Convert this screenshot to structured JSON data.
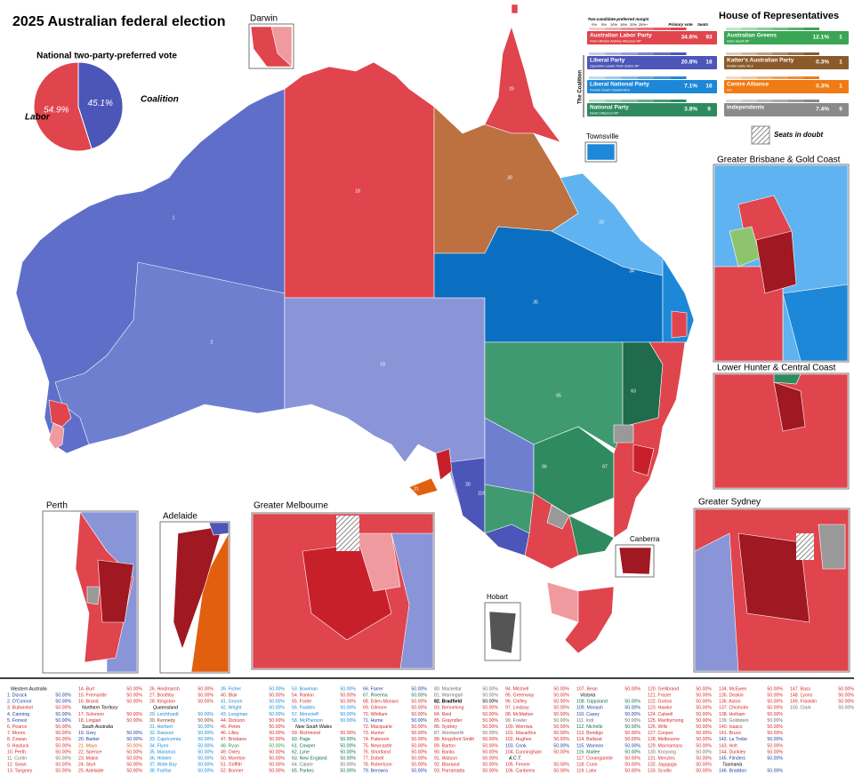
{
  "title": "2025 Australian federal election",
  "pie": {
    "title": "National two-party-preferred vote",
    "series": [
      {
        "name": "Labor",
        "value": 54.9,
        "label": "54.9%",
        "color": "#e0444d"
      },
      {
        "name": "Coalition",
        "value": 45.1,
        "label": "45.1%",
        "color": "#4b56b8"
      }
    ]
  },
  "legend": {
    "margin_title": "Two-candidate-preferred margin",
    "margin_ticks": [
      "0%",
      "5%",
      "10%",
      "15%",
      "20%",
      "25%+"
    ],
    "primary_header": "Primary vote",
    "seats_header": "Seats",
    "coalition_label": "The Coalition",
    "parties": [
      {
        "name": "Australian Labor Party",
        "leader": "Prime Minister Anthony Albanese MP",
        "primary": "34.6%",
        "seats": 93,
        "color": "#e0444d"
      },
      {
        "name": "Liberal Party",
        "leader": "Opposition Leader Peter Dutton MP",
        "primary": "20.8%",
        "seats": 18,
        "color": "#4b56b8"
      },
      {
        "name": "Liberal National Party",
        "leader": "Premier David Crisafulli MLA",
        "primary": "7.1%",
        "seats": 16,
        "color": "#1e88d8"
      },
      {
        "name": "National Party",
        "leader": "David Littleproud MP",
        "primary": "3.8%",
        "seats": 9,
        "color": "#2f8a60"
      }
    ]
  },
  "house": {
    "title": "House of Representatives",
    "parties": [
      {
        "name": "Australian Greens",
        "leader": "Adam Bandt MP",
        "primary": "12.1%",
        "seats": 1,
        "color": "#3aa655"
      },
      {
        "name": "Katter's Australian Party",
        "leader": "Robbie Katter MLA",
        "primary": "0.3%",
        "seats": 1,
        "color": "#8b5a2b"
      },
      {
        "name": "Centre Alliance",
        "leader": "N/A",
        "primary": "0.3%",
        "seats": 1,
        "color": "#f07a14"
      },
      {
        "name": "Independents",
        "primary": "7.4%",
        "seats": 9,
        "color": "#8a8a8a"
      }
    ]
  },
  "doubt_label": "Seats in doubt",
  "insets": [
    "Darwin",
    "Townsville",
    "Greater Brisbane & Gold Coast",
    "Lower Hunter & Central Coast",
    "Perth",
    "Adelaide",
    "Greater Melbourne",
    "Hobart",
    "Canberra",
    "Greater Sydney"
  ],
  "map_labels": [
    "1",
    "2",
    "18",
    "19",
    "29",
    "30",
    "33",
    "34",
    "35",
    "65",
    "20",
    "21",
    "116",
    "66",
    "63",
    "67"
  ],
  "electorates": [
    [
      "Western Australia"
    ],
    [
      "1. Durack",
      "50.00%",
      "#1b3fa0"
    ],
    [
      "2. O'Connor",
      "50.00%",
      "#1b3fa0"
    ],
    [
      "3. Bullwinkel",
      "50.00%",
      "#d42a2a"
    ],
    [
      "4. Canning",
      "50.00%",
      "#1b3fa0"
    ],
    [
      "5. Forrest",
      "50.00%",
      "#1b3fa0"
    ],
    [
      "6. Pearce",
      "50.00%",
      "#d42a2a"
    ],
    [
      "7. Moore",
      "50.00%",
      "#d42a2a"
    ],
    [
      "8. Cowan",
      "50.00%",
      "#d42a2a"
    ],
    [
      "9. Hasluck",
      "50.00%",
      "#d42a2a"
    ],
    [
      "10. Perth",
      "50.00%",
      "#d42a2a"
    ],
    [
      "11. Curtin",
      "50.00%",
      "#6d6d6d"
    ],
    [
      "12. Swan",
      "50.00%",
      "#d42a2a"
    ],
    [
      "13. Tangney",
      "50.00%",
      "#d42a2a"
    ],
    [
      "14. Burt",
      "50.00%",
      "#d42a2a"
    ],
    [
      "15. Fremantle",
      "50.00%",
      "#d42a2a"
    ],
    [
      "16. Brand",
      "50.00%",
      "#d42a2a"
    ],
    [
      "Northern Territory"
    ],
    [
      "17. Solomon",
      "50.00%",
      "#d42a2a"
    ],
    [
      "18. Lingiari",
      "50.00%",
      "#d42a2a"
    ],
    [
      "South Australia"
    ],
    [
      "19. Grey",
      "50.00%",
      "#1b3fa0"
    ],
    [
      "20. Barker",
      "50.00%",
      "#1b3fa0"
    ],
    [
      "21. Mayo",
      "50.00%",
      "#e0600a"
    ],
    [
      "22. Spence",
      "50.00%",
      "#d42a2a"
    ],
    [
      "23. Makin",
      "50.00%",
      "#d42a2a"
    ],
    [
      "24. Sturt",
      "50.00%",
      "#d42a2a"
    ],
    [
      "25. Adelaide",
      "50.00%",
      "#d42a2a"
    ],
    [
      "26. Hindmarsh",
      "50.00%",
      "#d42a2a"
    ],
    [
      "27. Boothby",
      "50.00%",
      "#d42a2a"
    ],
    [
      "28. Kingston",
      "50.00%",
      "#d42a2a"
    ],
    [
      "Queensland"
    ],
    [
      "29. Leichhardt",
      "50.00%",
      "#1a8ad4"
    ],
    [
      "30. Kennedy",
      "50.00%",
      "#8b4513"
    ],
    [
      "31. Herbert",
      "50.00%",
      "#1a8ad4"
    ],
    [
      "32. Dawson",
      "50.00%",
      "#1a8ad4"
    ],
    [
      "33. Capricornia",
      "50.00%",
      "#1a8ad4"
    ],
    [
      "34. Flynn",
      "50.00%",
      "#1a8ad4"
    ],
    [
      "35. Maranoa",
      "50.00%",
      "#1a8ad4"
    ],
    [
      "36. Hinkler",
      "50.00%",
      "#1a8ad4"
    ],
    [
      "37. Wide Bay",
      "50.00%",
      "#1a8ad4"
    ],
    [
      "38. Fairfax",
      "50.00%",
      "#1a8ad4"
    ],
    [
      "39. Fisher",
      "50.00%",
      "#1a8ad4"
    ],
    [
      "40. Blair",
      "50.00%",
      "#d42a2a"
    ],
    [
      "41. Groom",
      "50.00%",
      "#1a8ad4"
    ],
    [
      "42. Wright",
      "50.00%",
      "#1a8ad4"
    ],
    [
      "43. Longman",
      "50.00%",
      "#1a8ad4"
    ],
    [
      "44. Dickson",
      "50.00%",
      "#d42a2a"
    ],
    [
      "45. Petrie",
      "50.00%",
      "#d42a2a"
    ],
    [
      "46. Lilley",
      "50.00%",
      "#d42a2a"
    ],
    [
      "47. Brisbane",
      "50.00%",
      "#d42a2a"
    ],
    [
      "48. Ryan",
      "50.00%",
      "#1a9e4a"
    ],
    [
      "49. Oxley",
      "50.00%",
      "#d42a2a"
    ],
    [
      "50. Moreton",
      "50.00%",
      "#d42a2a"
    ],
    [
      "51. Griffith",
      "50.00%",
      "#d42a2a"
    ],
    [
      "52. Bonner",
      "50.00%",
      "#d42a2a"
    ],
    [
      "53. Bowman",
      "50.00%",
      "#1a8ad4"
    ],
    [
      "54. Rankin",
      "50.00%",
      "#d42a2a"
    ],
    [
      "55. Forde",
      "50.00%",
      "#d42a2a"
    ],
    [
      "56. Fadden",
      "50.00%",
      "#1a8ad4"
    ],
    [
      "57. Moncrieff",
      "50.00%",
      "#1a8ad4"
    ],
    [
      "58. McPherson",
      "50.00%",
      "#1a8ad4"
    ],
    [
      "New South Wales"
    ],
    [
      "59. Richmond",
      "50.00%",
      "#d42a2a"
    ],
    [
      "60. Page",
      "50.00%",
      "#0f6e4a"
    ],
    [
      "61. Cowper",
      "50.00%",
      "#0f6e4a"
    ],
    [
      "62. Lyne",
      "50.00%",
      "#0f6e4a"
    ],
    [
      "63. New England",
      "50.00%",
      "#0f6e4a"
    ],
    [
      "64. Calare",
      "50.00%",
      "#6d6d6d"
    ],
    [
      "65. Parkes",
      "50.00%",
      "#0f6e4a"
    ],
    [
      "66. Farrer",
      "50.00%",
      "#1b3fa0"
    ],
    [
      "67. Riverina",
      "50.00%",
      "#0f6e4a"
    ],
    [
      "68. Eden-Monaro",
      "50.00%",
      "#d42a2a"
    ],
    [
      "69. Gilmore",
      "50.00%",
      "#d42a2a"
    ],
    [
      "70. Whitlam",
      "50.00%",
      "#d42a2a"
    ],
    [
      "71. Hume",
      "50.00%",
      "#1b3fa0"
    ],
    [
      "72. Macquarie",
      "50.00%",
      "#d42a2a"
    ],
    [
      "73. Hunter",
      "50.00%",
      "#d42a2a"
    ],
    [
      "74. Paterson",
      "50.00%",
      "#d42a2a"
    ],
    [
      "75. Newcastle",
      "50.00%",
      "#d42a2a"
    ],
    [
      "76. Shortland",
      "50.00%",
      "#d42a2a"
    ],
    [
      "77. Dobell",
      "50.00%",
      "#d42a2a"
    ],
    [
      "78. Robertson",
      "50.00%",
      "#d42a2a"
    ],
    [
      "79. Berowra",
      "50.00%",
      "#1b3fa0"
    ],
    [
      "80. Mackellar",
      "50.00%",
      "#6d6d6d"
    ],
    [
      "81. Warringah",
      "50.00%",
      "#6d6d6d"
    ],
    [
      "82. Bradfield",
      "50.00%",
      "#000000"
    ],
    [
      "83. Bennelong",
      "50.00%",
      "#d42a2a"
    ],
    [
      "84. Reid",
      "50.00%",
      "#d42a2a"
    ],
    [
      "85. Grayndler",
      "50.00%",
      "#d42a2a"
    ],
    [
      "86. Sydney",
      "50.00%",
      "#d42a2a"
    ],
    [
      "87. Wentworth",
      "50.00%",
      "#6d6d6d"
    ],
    [
      "88. Kingsford Smith",
      "50.00%",
      "#d42a2a"
    ],
    [
      "89. Barton",
      "50.00%",
      "#d42a2a"
    ],
    [
      "90. Banks",
      "50.00%",
      "#d42a2a"
    ],
    [
      "91. Watson",
      "50.00%",
      "#d42a2a"
    ],
    [
      "92. Blaxland",
      "50.00%",
      "#d42a2a"
    ],
    [
      "93. Parramatta",
      "50.00%",
      "#d42a2a"
    ],
    [
      "94. Mitchell",
      "50.00%",
      "#d42a2a"
    ],
    [
      "95. Greenway",
      "50.00%",
      "#d42a2a"
    ],
    [
      "96. Chifley",
      "50.00%",
      "#d42a2a"
    ],
    [
      "97. Lindsay",
      "50.00%",
      "#d42a2a"
    ],
    [
      "98. McMahon",
      "50.00%",
      "#d42a2a"
    ],
    [
      "99. Fowler",
      "50.00%",
      "#6d6d6d"
    ],
    [
      "100. Werriwa",
      "50.00%",
      "#d42a2a"
    ],
    [
      "101. Macarthur",
      "50.00%",
      "#d42a2a"
    ],
    [
      "102. Hughes",
      "50.00%",
      "#d42a2a"
    ],
    [
      "103. Cook",
      "50.00%",
      "#1b3fa0"
    ],
    [
      "104. Cunningham",
      "50.00%",
      "#d42a2a"
    ],
    [
      "A.C.T."
    ],
    [
      "105. Fenner",
      "50.00%",
      "#d42a2a"
    ],
    [
      "106. Canberra",
      "50.00%",
      "#d42a2a"
    ],
    [
      "107. Bean",
      "50.00%",
      "#d42a2a"
    ],
    [
      "Victoria"
    ],
    [
      "108. Gippsland",
      "50.00%",
      "#0f6e4a"
    ],
    [
      "109. Monash",
      "50.00%",
      "#1b3fa0"
    ],
    [
      "110. Casey",
      "50.00%",
      "#1b3fa0"
    ],
    [
      "111. Indi",
      "50.00%",
      "#6d6d6d"
    ],
    [
      "112. Nicholls",
      "50.00%",
      "#0f6e4a"
    ],
    [
      "113. Bendigo",
      "50.00%",
      "#d42a2a"
    ],
    [
      "114. Ballarat",
      "50.00%",
      "#d42a2a"
    ],
    [
      "115. Wannon",
      "50.00%",
      "#1b3fa0"
    ],
    [
      "116. Mallee",
      "50.00%",
      "#0f6e4a"
    ],
    [
      "117. Corangamite",
      "50.00%",
      "#d42a2a"
    ],
    [
      "118. Corio",
      "50.00%",
      "#d42a2a"
    ],
    [
      "119. Lalor",
      "50.00%",
      "#d42a2a"
    ],
    [
      "120. Gellibrand",
      "50.00%",
      "#d42a2a"
    ],
    [
      "121. Fraser",
      "50.00%",
      "#d42a2a"
    ],
    [
      "122. Gorton",
      "50.00%",
      "#d42a2a"
    ],
    [
      "123. Hawke",
      "50.00%",
      "#d42a2a"
    ],
    [
      "124. Calwell",
      "50.00%",
      "#d42a2a"
    ],
    [
      "125. Maribyrnong",
      "50.00%",
      "#d42a2a"
    ],
    [
      "126. Wills",
      "50.00%",
      "#d42a2a"
    ],
    [
      "127. Cooper",
      "50.00%",
      "#d42a2a"
    ],
    [
      "128. Melbourne",
      "50.00%",
      "#d42a2a"
    ],
    [
      "129. Macnamara",
      "50.00%",
      "#d42a2a"
    ],
    [
      "130. Kooyong",
      "50.00%",
      "#6d6d6d"
    ],
    [
      "131. Menzies",
      "50.00%",
      "#d42a2a"
    ],
    [
      "132. Jagajaga",
      "50.00%",
      "#d42a2a"
    ],
    [
      "133. Scullin",
      "50.00%",
      "#d42a2a"
    ],
    [
      "134. McEwen",
      "50.00%",
      "#d42a2a"
    ],
    [
      "135. Deakin",
      "50.00%",
      "#d42a2a"
    ],
    [
      "136. Aston",
      "50.00%",
      "#d42a2a"
    ],
    [
      "137. Chisholm",
      "50.00%",
      "#d42a2a"
    ],
    [
      "138. Hotham",
      "50.00%",
      "#d42a2a"
    ],
    [
      "139. Goldstein",
      "50.00%",
      "#6d6d6d"
    ],
    [
      "140. Isaacs",
      "50.00%",
      "#d42a2a"
    ],
    [
      "141. Bruce",
      "50.00%",
      "#d42a2a"
    ],
    [
      "142. La Trobe",
      "50.00%",
      "#1b3fa0"
    ],
    [
      "143. Holt",
      "50.00%",
      "#d42a2a"
    ],
    [
      "144. Dunkley",
      "50.00%",
      "#d42a2a"
    ],
    [
      "145. Flinders",
      "50.00%",
      "#1b3fa0"
    ],
    [
      "Tasmania"
    ],
    [
      "146. Braddon",
      "50.00%",
      "#1b3fa0"
    ],
    [
      "147. Bass",
      "50.00%",
      "#d42a2a"
    ],
    [
      "148. Lyons",
      "50.00%",
      "#d42a2a"
    ],
    [
      "149. Franklin",
      "50.00%",
      "#d42a2a"
    ],
    [
      "150. Clark",
      "50.00%",
      "#6d6d6d"
    ]
  ]
}
